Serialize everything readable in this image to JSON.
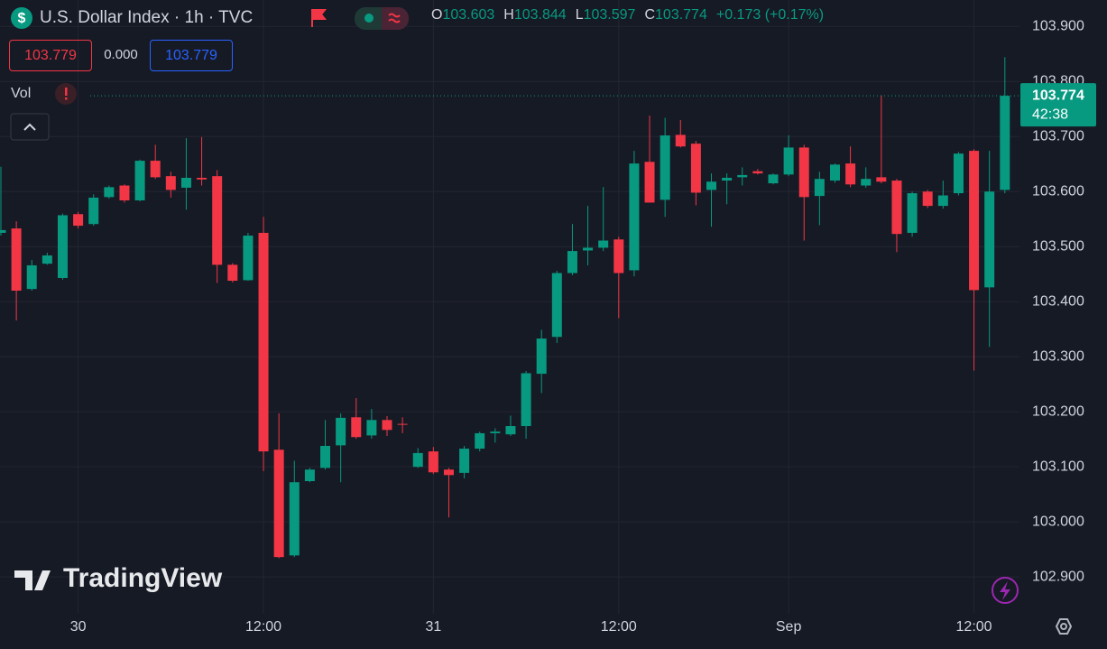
{
  "chart_data": {
    "type": "candlestick",
    "title": "U.S. Dollar Index · 1h · TVC",
    "symbol_icon": "$",
    "ohlc_labels": [
      "O",
      "H",
      "L",
      "C"
    ],
    "change_label": "+0.173 (+0.17%)",
    "bid": 103.779,
    "spread": "0.000",
    "ask": 103.779,
    "volume_label": "Vol",
    "countdown": "42:38",
    "logo": "TradingView",
    "up_color": "#089981",
    "down_color": "#f23645",
    "grid": true,
    "categories": [
      null,
      null,
      null,
      null,
      null,
      "30",
      null,
      null,
      null,
      null,
      null,
      null,
      null,
      null,
      null,
      null,
      null,
      "12:00",
      null,
      null,
      null,
      null,
      null,
      null,
      null,
      null,
      null,
      null,
      "31",
      null,
      null,
      null,
      null,
      null,
      null,
      null,
      null,
      null,
      null,
      null,
      "12:00",
      null,
      null,
      null,
      null,
      null,
      null,
      null,
      null,
      null,
      null,
      "Sep",
      null,
      null,
      null,
      null,
      null,
      null,
      null,
      null,
      null,
      null,
      null,
      "12:00",
      null,
      null
    ],
    "open": [
      103.525,
      103.533,
      103.423,
      103.469,
      103.443,
      103.559,
      103.541,
      103.59,
      103.611,
      103.584,
      103.656,
      103.628,
      103.607,
      103.625,
      103.628,
      103.467,
      103.439,
      103.525,
      103.131,
      102.939,
      103.074,
      103.098,
      103.139,
      103.19,
      103.157,
      103.185,
      103.178,
      103.1,
      103.128,
      103.095,
      103.089,
      103.133,
      103.161,
      103.159,
      103.174,
      103.269,
      103.336,
      103.452,
      103.493,
      103.498,
      103.513,
      103.457,
      103.654,
      103.585,
      103.703,
      103.687,
      103.603,
      103.62,
      103.626,
      103.637,
      103.615,
      103.631,
      103.68,
      103.592,
      103.62,
      103.651,
      103.611,
      103.626,
      103.62,
      103.525,
      103.6,
      103.574,
      103.597,
      103.674,
      103.426,
      103.603
    ],
    "high": [
      103.645,
      103.546,
      103.476,
      103.489,
      103.56,
      103.563,
      103.595,
      103.611,
      103.613,
      103.658,
      103.685,
      103.636,
      103.697,
      103.699,
      103.639,
      103.47,
      103.525,
      103.554,
      103.197,
      103.111,
      103.098,
      103.185,
      103.197,
      103.225,
      103.205,
      103.192,
      103.19,
      103.134,
      103.136,
      103.098,
      103.138,
      103.164,
      103.17,
      103.193,
      103.274,
      103.349,
      103.456,
      103.541,
      103.574,
      103.608,
      103.518,
      103.674,
      103.738,
      103.734,
      103.73,
      103.692,
      103.633,
      103.633,
      103.644,
      103.641,
      103.633,
      103.702,
      103.685,
      103.636,
      103.651,
      103.682,
      103.644,
      103.775,
      103.623,
      103.6,
      103.603,
      103.62,
      103.672,
      103.677,
      103.674,
      103.844
    ],
    "low": [
      103.52,
      103.366,
      103.42,
      103.467,
      103.44,
      103.533,
      103.538,
      103.587,
      103.58,
      103.582,
      103.623,
      103.589,
      103.567,
      103.611,
      103.434,
      103.435,
      103.438,
      103.092,
      102.934,
      102.936,
      103.072,
      103.095,
      103.072,
      103.151,
      103.151,
      103.156,
      103.161,
      103.098,
      103.087,
      103.008,
      103.079,
      103.128,
      103.144,
      103.156,
      103.151,
      103.234,
      103.325,
      103.448,
      103.466,
      103.492,
      103.37,
      103.446,
      103.58,
      103.554,
      103.68,
      103.575,
      103.536,
      103.577,
      103.611,
      103.631,
      103.613,
      103.628,
      103.511,
      103.539,
      103.616,
      103.608,
      103.607,
      103.615,
      103.49,
      103.518,
      103.57,
      103.569,
      103.593,
      103.275,
      103.318,
      103.597
    ],
    "close": [
      103.53,
      103.42,
      103.466,
      103.484,
      103.557,
      103.538,
      103.589,
      103.608,
      103.584,
      103.656,
      103.626,
      103.603,
      103.625,
      103.622,
      103.467,
      103.438,
      103.52,
      103.128,
      102.936,
      103.072,
      103.095,
      103.138,
      103.189,
      103.154,
      103.185,
      103.167,
      103.177,
      103.125,
      103.09,
      103.085,
      103.133,
      103.161,
      103.164,
      103.174,
      103.27,
      103.333,
      103.452,
      103.492,
      103.498,
      103.511,
      103.452,
      103.651,
      103.58,
      103.702,
      103.682,
      103.598,
      103.618,
      103.625,
      103.63,
      103.633,
      103.631,
      103.68,
      103.59,
      103.623,
      103.649,
      103.613,
      103.623,
      103.618,
      103.523,
      103.597,
      103.574,
      103.593,
      103.669,
      103.421,
      103.6,
      103.774
    ],
    "ylim": [
      102.833,
      103.948
    ],
    "yticks": [
      {
        "value": 102.9,
        "label": "102.900"
      },
      {
        "value": 103.0,
        "label": "103.000"
      },
      {
        "value": 103.1,
        "label": "103.100"
      },
      {
        "value": 103.2,
        "label": "103.200"
      },
      {
        "value": 103.3,
        "label": "103.300"
      },
      {
        "value": 103.4,
        "label": "103.400"
      },
      {
        "value": 103.5,
        "label": "103.500"
      },
      {
        "value": 103.6,
        "label": "103.600"
      },
      {
        "value": 103.7,
        "label": "103.700"
      },
      {
        "value": 103.8,
        "label": "103.800"
      },
      {
        "value": 103.9,
        "label": "103.900"
      }
    ]
  }
}
